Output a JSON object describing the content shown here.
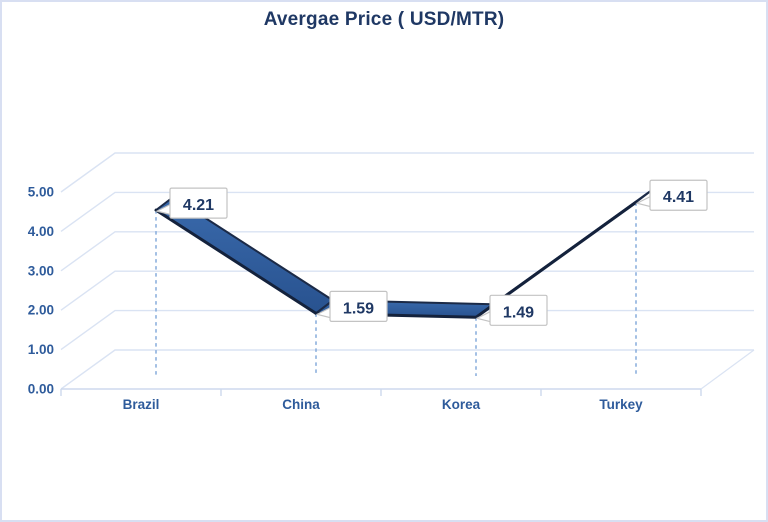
{
  "chart_data": {
    "type": "line",
    "style": "3d-ribbon",
    "title": "Avergae Price ( USD/MTR)",
    "categories": [
      "Brazil",
      "China",
      "Korea",
      "Turkey"
    ],
    "values": [
      4.21,
      1.59,
      1.49,
      4.41
    ],
    "data_labels": [
      "4.21",
      "1.59",
      "1.49",
      "4.41"
    ],
    "xlabel": "",
    "ylabel": "",
    "y_axis": {
      "min": 0,
      "max": 5,
      "step": 1,
      "tick_labels": [
        "0.00",
        "1.00",
        "2.00",
        "3.00",
        "4.00",
        "5.00"
      ]
    },
    "grid": true,
    "legend": "none",
    "colors": {
      "ribbon_fill_dark": "#28528f",
      "ribbon_fill_light": "#3a6aac",
      "ribbon_edge": "#1b2a47",
      "front_edge": "#14223c",
      "title_text": "#1f3864",
      "axis_text": "#2e5b9b",
      "data_label_text": "#1f3864",
      "gridline": "#dae3f3",
      "baseline": "#cdd9ed",
      "drop_line": "#85acdb",
      "label_box_fill": "#ffffff",
      "label_box_border": "#c3c3c3",
      "frame_border": "#d8dff2"
    }
  }
}
